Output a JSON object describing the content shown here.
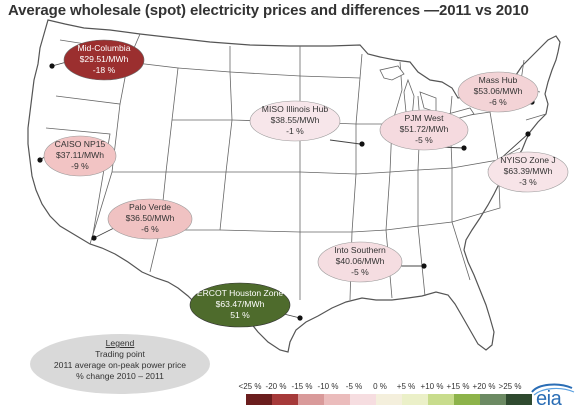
{
  "title": "Average wholesale (spot) electricity prices and differences —2011 vs 2010",
  "hubs": [
    {
      "name": "Mid-Columbia",
      "price": "$29.51/MWh",
      "change": "-18 %",
      "color": "#9b2f2f",
      "text_color": "#ffffff"
    },
    {
      "name": "CAISO NP15",
      "price": "$37.11/MWh",
      "change": "-9 %",
      "color": "#f2c4c4",
      "text_color": "#333333"
    },
    {
      "name": "Palo Verde",
      "price": "$36.50/MWh",
      "change": "-6 %",
      "color": "#f0c2c2",
      "text_color": "#333333"
    },
    {
      "name": "MISO Illinois Hub",
      "price": "$38.55/MWh",
      "change": "-1 %",
      "color": "#f7e6ea",
      "text_color": "#333333"
    },
    {
      "name": "PJM West",
      "price": "$51.72/MWh",
      "change": "-5 %",
      "color": "#f5dadf",
      "text_color": "#333333"
    },
    {
      "name": "Mass Hub",
      "price": "$53.06/MWh",
      "change": "-6 %",
      "color": "#f3d3d6",
      "text_color": "#333333"
    },
    {
      "name": "NYISO Zone J",
      "price": "$63.39/MWh",
      "change": "-3 %",
      "color": "#f7e4e8",
      "text_color": "#333333"
    },
    {
      "name": "Into Southern",
      "price": "$40.06/MWh",
      "change": "-5 %",
      "color": "#f5dde1",
      "text_color": "#333333"
    },
    {
      "name": "ERCOT Houston Zone",
      "price": "$63.47/MWh",
      "change": "51 %",
      "color": "#4e6b2c",
      "text_color": "#ffffff"
    }
  ],
  "legend": {
    "title": "Legend",
    "line1": "Trading point",
    "line2": "2011 average on-peak power price",
    "line3": "% change 2010 – 2011",
    "color": "#d9d9d9"
  },
  "scale": {
    "labels": [
      "<25 %",
      "-20 %",
      "-15 %",
      "-10 %",
      "-5 %",
      "0 %",
      "+5 %",
      "+10 %",
      "+15 %",
      "+20 %",
      ">25 %"
    ],
    "colors": [
      "#6b1e1e",
      "#a63a3a",
      "#d99a9a",
      "#ebbcbc",
      "#f6dde0",
      "#f4efdc",
      "#ebf0c8",
      "#c8dc8c",
      "#8db34a",
      "#6c8a63",
      "#2f4a2f"
    ]
  },
  "logo": {
    "text": "eia",
    "color": "#2a6db5"
  }
}
